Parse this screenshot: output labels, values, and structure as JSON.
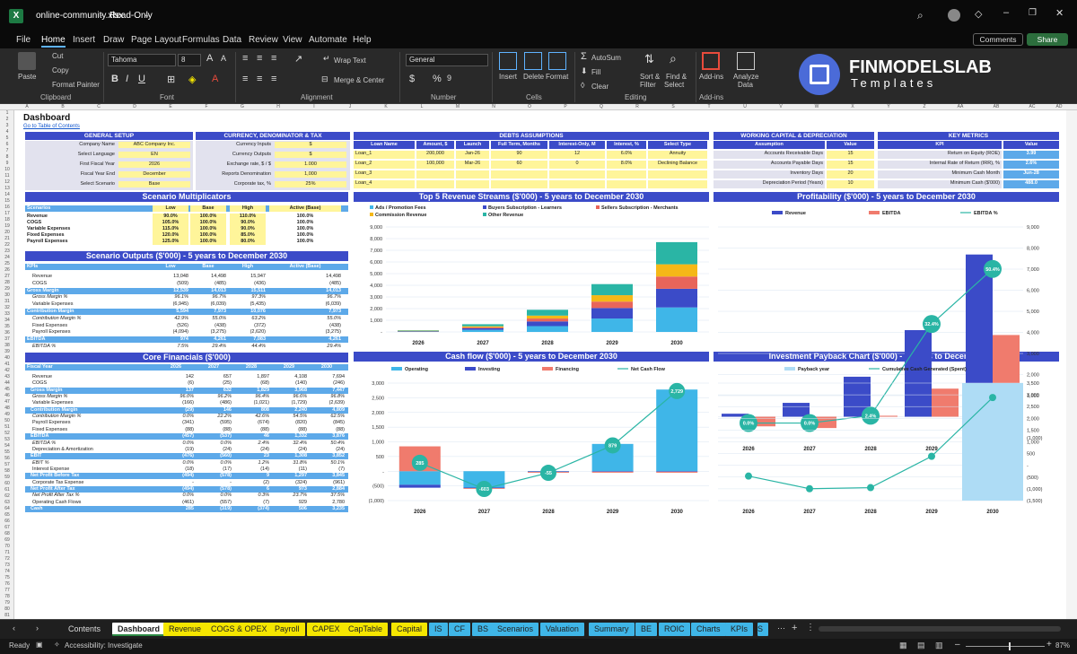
{
  "titlebar": {
    "filename": "online-community.xlsx",
    "mode": "Read-Only"
  },
  "menu": [
    "File",
    "Home",
    "Insert",
    "Draw",
    "Page Layout",
    "Formulas",
    "Data",
    "Review",
    "View",
    "Automate",
    "Help"
  ],
  "menu_active": "Home",
  "comments_label": "Comments",
  "share_label": "Share",
  "ribbon": {
    "paste": "Paste",
    "cut": "Cut",
    "copy": "Copy",
    "format_painter": "Format Painter",
    "clipboard": "Clipboard",
    "font_name": "Tahoma",
    "font_size": "8",
    "font": "Font",
    "wrap": "Wrap Text",
    "merge": "Merge & Center",
    "alignment": "Alignment",
    "numfmt": "General",
    "number": "Number",
    "insert": "Insert",
    "delete": "Delete",
    "format": "Format",
    "cells": "Cells",
    "autosum": "AutoSum",
    "fill": "Fill",
    "clear": "Clear",
    "sort": "Sort &",
    "sort2": "Filter",
    "find": "Find &",
    "find2": "Select",
    "editing": "Editing",
    "addins": "Add-ins",
    "addins_grp": "Add-ins",
    "analyze": "Analyze",
    "analyze2": "Data"
  },
  "logo": {
    "line1": "FINMODELSLAB",
    "line2": "Templates"
  },
  "columns": [
    "A",
    "B",
    "C",
    "D",
    "E",
    "F",
    "G",
    "H",
    "I",
    "J",
    "K",
    "L",
    "M",
    "N",
    "O",
    "P",
    "Q",
    "R",
    "S",
    "T",
    "U",
    "V",
    "W",
    "X",
    "Y",
    "Z",
    "AA",
    "AB",
    "AC",
    "AD"
  ],
  "dashboard": {
    "title": "Dashboard",
    "link": "Go to Table of Contents"
  },
  "general": {
    "title": "GENERAL SETUP",
    "rows": [
      [
        "Company Name",
        "ABC Company Inc."
      ],
      [
        "Select Language",
        "EN"
      ],
      [
        "First Fiscal Year",
        "2026"
      ],
      [
        "Fiscal Year End",
        "December"
      ],
      [
        "Select Scenario",
        "Base"
      ]
    ]
  },
  "currency": {
    "title": "CURRENCY, DENOMINATOR & TAX",
    "rows": [
      [
        "Currency Inputs",
        "$"
      ],
      [
        "Currency Outputs",
        "$"
      ],
      [
        "Exchange rate, $ / $",
        "1.000"
      ],
      [
        "Reports Denomination",
        "1,000"
      ],
      [
        "Corporate tax, %",
        "25%"
      ]
    ]
  },
  "debts": {
    "title": "DEBTS ASSUMPTIONS",
    "headers": [
      "Loan Name",
      "Amount, $",
      "Launch",
      "Full Term, Months",
      "Interest-Only, M",
      "Interest, %",
      "Select Type"
    ],
    "rows": [
      [
        "Loan_1",
        "200,000",
        "Jan-26",
        "90",
        "12",
        "6.0%",
        "Annuity"
      ],
      [
        "Loan_2",
        "100,000",
        "Mar-26",
        "60",
        "0",
        "8.0%",
        "Declining Balance"
      ],
      [
        "Loan_3",
        "",
        "",
        "",
        "",
        "",
        ""
      ],
      [
        "Loan_4",
        "",
        "",
        "",
        "",
        "",
        ""
      ]
    ]
  },
  "wc": {
    "title": "WORKING CAPITAL & DEPRECIATION",
    "headers": [
      "Assumption",
      "Value"
    ],
    "rows": [
      [
        "Accounts Receivable Days",
        "15"
      ],
      [
        "Accounts Payable Days",
        "15"
      ],
      [
        "Inventory Days",
        "20"
      ],
      [
        "Depreciation Period (Years)",
        "10"
      ]
    ]
  },
  "kpi": {
    "title": "KEY METRICS",
    "headers": [
      "KPI",
      "Value"
    ],
    "rows": [
      [
        "Return on Equity (ROE)",
        "3.99"
      ],
      [
        "Internal Rate of Return (IRR), %",
        "2.6%"
      ],
      [
        "Minimum Cash Month",
        "Jun-28"
      ],
      [
        "Minimum Cash ($'000)",
        "488.0"
      ]
    ]
  },
  "multipliers": {
    "title": "Scenario Multiplicators",
    "headers": [
      "Scenarios",
      "Low",
      "Base",
      "High",
      "Active (Base)"
    ],
    "rows": [
      [
        "Revenue",
        "90.0%",
        "100.0%",
        "110.0%",
        "100.0%"
      ],
      [
        "COGS",
        "105.0%",
        "100.0%",
        "90.0%",
        "100.0%"
      ],
      [
        "Variable Expenses",
        "115.0%",
        "100.0%",
        "90.0%",
        "100.0%"
      ],
      [
        "Fixed Expenses",
        "120.0%",
        "100.0%",
        "85.0%",
        "100.0%"
      ],
      [
        "Payroll Expenses",
        "125.0%",
        "100.0%",
        "80.0%",
        "100.0%"
      ]
    ]
  },
  "outputs": {
    "title": "Scenario Outputs ($'000) - 5 years to December 2030",
    "headers": [
      "KPIs",
      "Low",
      "Base",
      "High",
      "Active (Base)"
    ],
    "rows": [
      [
        "Revenue",
        "13,048",
        "14,498",
        "15,947",
        "14,498",
        "n"
      ],
      [
        "COGS",
        "(509)",
        "(485)",
        "(436)",
        "(485)",
        "n"
      ],
      [
        "Gross Margin",
        "12,539",
        "14,013",
        "15,511",
        "14,013",
        "s"
      ],
      [
        "Gross Margin %",
        "96.1%",
        "96.7%",
        "97.3%",
        "96.7%",
        "i"
      ],
      [
        "Variable Expenses",
        "(6,945)",
        "(6,039)",
        "(5,435)",
        "(6,039)",
        "n"
      ],
      [
        "Contribution Margin",
        "5,594",
        "7,973",
        "10,076",
        "7,973",
        "s"
      ],
      [
        "Contribution Margin %",
        "42.9%",
        "55.0%",
        "63.2%",
        "55.0%",
        "i"
      ],
      [
        "Fixed Expenses",
        "(526)",
        "(438)",
        "(372)",
        "(438)",
        "n"
      ],
      [
        "Payroll Expenses",
        "(4,094)",
        "(3,275)",
        "(2,620)",
        "(3,275)",
        "n"
      ],
      [
        "EBITDA",
        "974",
        "4,261",
        "7,083",
        "4,261",
        "s"
      ],
      [
        "EBITDA %",
        "7.5%",
        "29.4%",
        "44.4%",
        "29.4%",
        "i"
      ]
    ]
  },
  "core": {
    "title": "Core Financials ($'000)",
    "headers": [
      "Fiscal Year",
      "2026",
      "2027",
      "2028",
      "2029",
      "2030"
    ],
    "rows": [
      [
        "Revenue",
        "142",
        "657",
        "1,897",
        "4,108",
        "7,694",
        "n"
      ],
      [
        "COGS",
        "(6)",
        "(25)",
        "(68)",
        "(140)",
        "(246)",
        "n"
      ],
      [
        "Gross Margin",
        "137",
        "632",
        "1,829",
        "3,968",
        "7,447",
        "s"
      ],
      [
        "Gross Margin %",
        "96.0%",
        "96.2%",
        "96.4%",
        "96.6%",
        "96.8%",
        "i"
      ],
      [
        "Variable Expenses",
        "(166)",
        "(486)",
        "(1,021)",
        "(1,729)",
        "(2,639)",
        "n"
      ],
      [
        "Contribution Margin",
        "(29)",
        "146",
        "808",
        "2,240",
        "4,809",
        "s"
      ],
      [
        "Contribution Margin %",
        "0.0%",
        "22.2%",
        "42.6%",
        "54.5%",
        "62.5%",
        "i"
      ],
      [
        "Payroll Expenses",
        "(341)",
        "(595)",
        "(674)",
        "(820)",
        "(845)",
        "n"
      ],
      [
        "Fixed Expenses",
        "(88)",
        "(88)",
        "(88)",
        "(88)",
        "(88)",
        "n"
      ],
      [
        "EBITDA",
        "(457)",
        "(537)",
        "46",
        "1,332",
        "3,876",
        "s"
      ],
      [
        "EBITDA %",
        "0.0%",
        "0.0%",
        "2.4%",
        "32.4%",
        "50.4%",
        "i"
      ],
      [
        "Depreciation & Amortization",
        "(19)",
        "(24)",
        "(24)",
        "(24)",
        "(24)",
        "n"
      ],
      [
        "EBIT",
        "(476)",
        "(560)",
        "23",
        "1,308",
        "3,852",
        "s"
      ],
      [
        "EBIT %",
        "0.0%",
        "0.0%",
        "1.2%",
        "31.8%",
        "50.1%",
        "i"
      ],
      [
        "Interest Expense",
        "(18)",
        "(17)",
        "(14)",
        "(11)",
        "(7)",
        "n"
      ],
      [
        "Net Profit Before Tax",
        "(494)",
        "(578)",
        "9",
        "1,297",
        "3,845",
        "s"
      ],
      [
        "Corporate Tax Expense",
        "-",
        "-",
        "(2)",
        "(324)",
        "(961)",
        "n"
      ],
      [
        "Net Profit After Tax",
        "(494)",
        "(578)",
        "6",
        "973",
        "2,884",
        "s"
      ],
      [
        "Net Profit After Tax %",
        "0.0%",
        "0.0%",
        "0.3%",
        "23.7%",
        "37.5%",
        "i"
      ],
      [
        "Operating Cash Flows",
        "(461)",
        "(557)",
        "(7)",
        "929",
        "2,780",
        "n"
      ],
      [
        "Cash",
        "285",
        "(319)",
        "(374)",
        "506",
        "3,235",
        "s"
      ]
    ]
  },
  "charts": {
    "revenue": {
      "title": "Top 5 Revenue Streams ($'000) - 5 years to December 2030",
      "legend": [
        "Ads / Promotion Fees",
        "Buyers Subscription - Learners",
        "Sellers Subscription - Merchants",
        "Commission Revenue",
        "Other Revenue"
      ],
      "colors": [
        "#3fb6e8",
        "#3b4bc8",
        "#e8655a",
        "#f5b817",
        "#2ab5a5"
      ],
      "ticks": [
        "9,000",
        "8,000",
        "7,000",
        "6,000",
        "5,000",
        "4,000",
        "3,000",
        "2,000",
        "1,000",
        "-"
      ]
    },
    "profit": {
      "title": "Profitability ($'000) - 5 years to December 2030",
      "legend": [
        "Revenue",
        "EBITDA",
        "EBITDA %"
      ],
      "ticks": [
        "9,000",
        "8,000",
        "7,000",
        "6,000",
        "5,000",
        "4,000",
        "3,000",
        "2,000",
        "1,000",
        "-",
        "(1,000)"
      ],
      "labels": [
        "0.0%",
        "0.0%",
        "2.4%",
        "32.4%",
        "50.4%"
      ]
    },
    "cash": {
      "title": "Cash flow ($'000) - 5 years to December 2030",
      "legend": [
        "Operating",
        "Investing",
        "Financing",
        "Net Cash Flow"
      ],
      "ticks": [
        "3,000",
        "2,500",
        "2,000",
        "1,500",
        "1,000",
        "500",
        "-",
        "(500)",
        "(1,000)"
      ],
      "labels": [
        "285",
        "-603",
        "-55",
        "879",
        "2,729"
      ]
    },
    "payback": {
      "title": "Investment Payback Chart ($'000) - 5 years to December 2030",
      "legend": [
        "Payback year",
        "Cumulative Cash Generated (Spent)"
      ],
      "ticks": [
        "3,500",
        "3,000",
        "2,500",
        "2,000",
        "1,500",
        "1,000",
        "500",
        "-",
        "(500)",
        "(1,000)",
        "(1,500)"
      ]
    }
  },
  "chart_data": [
    {
      "type": "bar",
      "title": "Top 5 Revenue Streams ($'000) - 5 years to December 2030",
      "categories": [
        "2026",
        "2027",
        "2028",
        "2029",
        "2030"
      ],
      "ylim": [
        0,
        9000
      ],
      "series": [
        {
          "name": "Ads / Promotion Fees",
          "values": [
            40,
            180,
            500,
            1150,
            2100
          ]
        },
        {
          "name": "Buyers Subscription - Learners",
          "values": [
            30,
            130,
            400,
            900,
            1600
          ]
        },
        {
          "name": "Sellers Subscription - Merchants",
          "values": [
            20,
            90,
            250,
            550,
            1050
          ]
        },
        {
          "name": "Commission Revenue",
          "values": [
            20,
            90,
            250,
            550,
            1050
          ]
        },
        {
          "name": "Other Revenue",
          "values": [
            30,
            170,
            500,
            950,
            1900
          ]
        }
      ]
    },
    {
      "type": "bar",
      "title": "Profitability ($'000) - 5 years to December 2030",
      "categories": [
        "2026",
        "2027",
        "2028",
        "2029",
        "2030"
      ],
      "ylim": [
        -1000,
        9000
      ],
      "series": [
        {
          "name": "Revenue",
          "values": [
            142,
            657,
            1897,
            4108,
            7694
          ]
        },
        {
          "name": "EBITDA",
          "values": [
            -457,
            -537,
            46,
            1332,
            3876
          ]
        },
        {
          "name": "EBITDA %",
          "values": [
            0,
            0,
            2.4,
            32.4,
            50.4
          ]
        }
      ]
    },
    {
      "type": "bar",
      "title": "Cash flow ($'000) - 5 years to December 2030",
      "categories": [
        "2026",
        "2027",
        "2028",
        "2029",
        "2030"
      ],
      "ylim": [
        -1000,
        3000
      ],
      "series": [
        {
          "name": "Operating",
          "values": [
            -461,
            -557,
            -7,
            929,
            2780
          ]
        },
        {
          "name": "Investing",
          "values": [
            -100,
            -20,
            -20,
            -20,
            -20
          ]
        },
        {
          "name": "Financing",
          "values": [
            846,
            -26,
            -28,
            -30,
            -31
          ]
        },
        {
          "name": "Net Cash Flow",
          "values": [
            285,
            -603,
            -55,
            879,
            2729
          ]
        }
      ]
    },
    {
      "type": "bar",
      "title": "Investment Payback Chart ($'000) - 5 years to December 2030",
      "categories": [
        "2026",
        "2027",
        "2028",
        "2029",
        "2030"
      ],
      "ylim": [
        -1500,
        3500
      ],
      "series": [
        {
          "name": "Payback year",
          "values": [
            0,
            0,
            0,
            0,
            3500
          ]
        },
        {
          "name": "Cumulative Cash Generated (Spent)",
          "values": [
            -457,
            -994,
            -948,
            384,
            2884
          ]
        }
      ]
    }
  ],
  "tabs": [
    {
      "label": "Contents",
      "color": ""
    },
    {
      "label": "Dashboard",
      "color": "#ffffff",
      "active": true
    },
    {
      "label": "Revenue",
      "color": "#f5e600"
    },
    {
      "label": "COGS & OPEX",
      "color": "#f5e600"
    },
    {
      "label": "Payroll",
      "color": "#f5e600"
    },
    {
      "label": "CAPEX",
      "color": "#f5e600"
    },
    {
      "label": "CapTable",
      "color": "#f5e600"
    },
    {
      "label": "Capital",
      "color": "#f5e600"
    },
    {
      "label": "IS",
      "color": "#3fb6e8"
    },
    {
      "label": "CF",
      "color": "#3fb6e8"
    },
    {
      "label": "BS",
      "color": "#3fb6e8"
    },
    {
      "label": "Scenarios",
      "color": "#3fb6e8"
    },
    {
      "label": "Valuation",
      "color": "#3fb6e8"
    },
    {
      "label": "Summary",
      "color": "#3fb6e8"
    },
    {
      "label": "BE",
      "color": "#3fb6e8"
    },
    {
      "label": "ROIC",
      "color": "#3fb6e8"
    },
    {
      "label": "Charts",
      "color": "#3fb6e8"
    },
    {
      "label": "KPIs",
      "color": "#3fb6e8"
    }
  ],
  "status": {
    "ready": "Ready",
    "accessibility": "Accessibility: Investigate",
    "zoom": "87%"
  }
}
